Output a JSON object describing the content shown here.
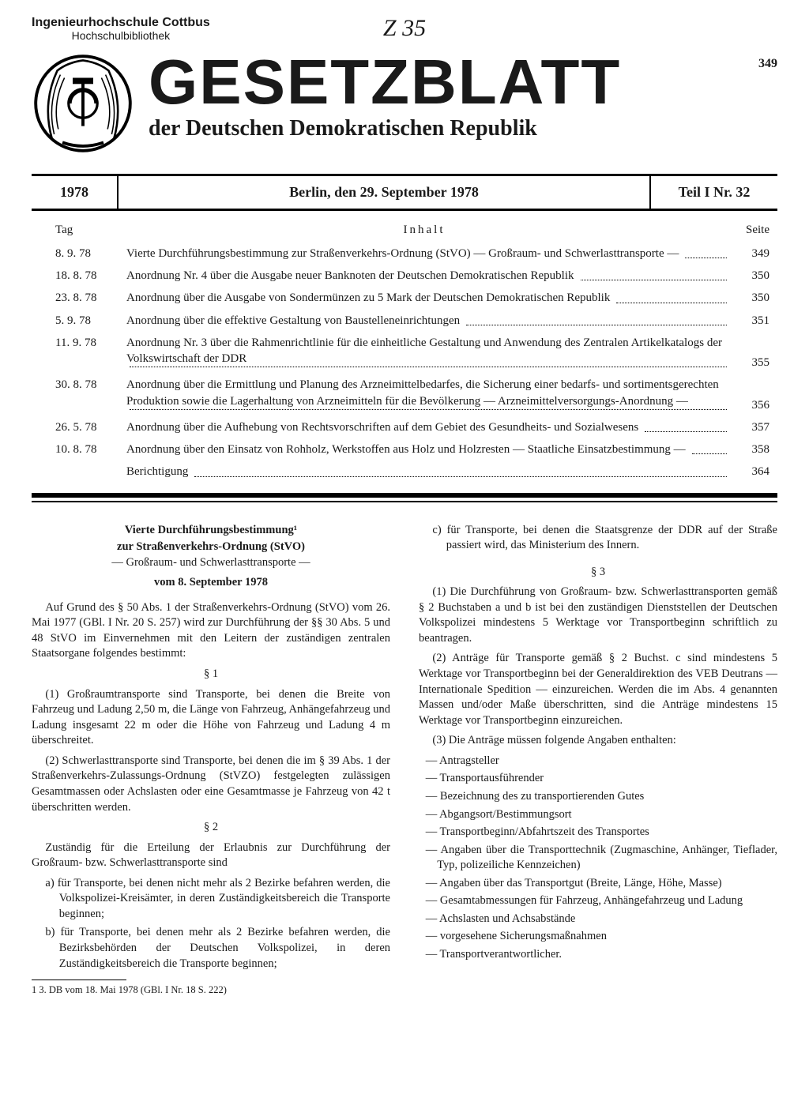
{
  "stamp": {
    "line1": "Ingenieurhochschule Cottbus",
    "line2": "Hochschulbibliothek"
  },
  "handnote": "Z 35",
  "masthead": {
    "title": "GESETZBLATT",
    "subtitle": "der Deutschen Demokratischen Republik",
    "page_number": "349"
  },
  "issue": {
    "year": "1978",
    "place_date": "Berlin, den 29. September 1978",
    "part_no": "Teil I Nr. 32"
  },
  "toc": {
    "head_day": "Tag",
    "head_content": "Inhalt",
    "head_page": "Seite",
    "rows": [
      {
        "day": "8. 9. 78",
        "title": "Vierte Durchführungsbestimmung zur Straßenverkehrs-Ordnung (StVO) — Großraum- und Schwerlasttransporte —",
        "page": "349"
      },
      {
        "day": "18. 8. 78",
        "title": "Anordnung Nr. 4 über die Ausgabe neuer Banknoten der Deutschen Demokratischen Republik",
        "page": "350"
      },
      {
        "day": "23. 8. 78",
        "title": "Anordnung über die Ausgabe von Sondermünzen zu 5 Mark der Deutschen Demokratischen Republik",
        "page": "350"
      },
      {
        "day": "5. 9. 78",
        "title": "Anordnung über die effektive Gestaltung von Baustelleneinrichtungen",
        "page": "351"
      },
      {
        "day": "11. 9. 78",
        "title": "Anordnung Nr. 3 über die Rahmenrichtlinie für die einheitliche Gestaltung und Anwendung des Zentralen Artikelkatalogs der Volkswirtschaft der DDR",
        "page": "355"
      },
      {
        "day": "30. 8. 78",
        "title": "Anordnung über die Ermittlung und Planung des Arzneimittelbedarfes, die Sicherung einer bedarfs- und sortimentsgerechten Produktion sowie die Lagerhaltung von Arzneimitteln für die Bevölkerung — Arzneimittelversorgungs-Anordnung —",
        "page": "356"
      },
      {
        "day": "26. 5. 78",
        "title": "Anordnung über die Aufhebung von Rechtsvorschriften auf dem Gebiet des Gesundheits- und Sozialwesens",
        "page": "357"
      },
      {
        "day": "10. 8. 78",
        "title": "Anordnung über den Einsatz von Rohholz, Werkstoffen aus Holz und Holzresten — Staatliche Einsatzbestimmung —",
        "page": "358"
      },
      {
        "day": "",
        "title": "Berichtigung",
        "page": "364"
      }
    ]
  },
  "article": {
    "title_line1": "Vierte Durchführungsbestimmung¹",
    "title_line2": "zur Straßenverkehrs-Ordnung (StVO)",
    "title_line3": "— Großraum- und Schwerlasttransporte —",
    "date_line": "vom 8. September 1978",
    "preamble": "Auf Grund des § 50 Abs. 1 der Straßenverkehrs-Ordnung (StVO) vom 26. Mai 1977 (GBl. I Nr. 20 S. 257) wird zur Durchführung der §§ 30 Abs. 5 und 48 StVO im Einvernehmen mit den Leitern der zuständigen zentralen Staatsorgane folgendes bestimmt:",
    "s1": "§ 1",
    "p1_1": "(1) Großraumtransporte sind Transporte, bei denen die Breite von Fahrzeug und Ladung 2,50 m, die Länge von Fahrzeug, Anhängefahrzeug und Ladung insgesamt 22 m oder die Höhe von Fahrzeug und Ladung 4 m überschreitet.",
    "p1_2": "(2) Schwerlasttransporte sind Transporte, bei denen die im § 39 Abs. 1 der Straßenverkehrs-Zulassungs-Ordnung (StVZO) festgelegten zulässigen Gesamtmassen oder Achslasten oder eine Gesamtmasse je Fahrzeug von 42 t überschritten werden.",
    "s2": "§ 2",
    "p2_intro": "Zuständig für die Erteilung der Erlaubnis zur Durchführung der Großraum- bzw. Schwerlasttransporte sind",
    "p2_a": "a) für Transporte, bei denen nicht mehr als 2 Bezirke befahren werden, die Volkspolizei-Kreisämter, in deren Zuständigkeitsbereich die Transporte beginnen;",
    "p2_b": "b) für Transporte, bei denen mehr als 2 Bezirke befahren werden, die Bezirksbehörden der Deutschen Volkspolizei, in deren Zuständigkeitsbereich die Transporte beginnen;",
    "p2_c": "c) für Transporte, bei denen die Staatsgrenze der DDR auf der Straße passiert wird, das Ministerium des Innern.",
    "s3": "§ 3",
    "p3_1": "(1) Die Durchführung von Großraum- bzw. Schwerlasttransporten gemäß § 2 Buchstaben a und b ist bei den zuständigen Dienststellen der Deutschen Volkspolizei mindestens 5 Werktage vor Transportbeginn schriftlich zu beantragen.",
    "p3_2": "(2) Anträge für Transporte gemäß § 2 Buchst. c sind mindestens 5 Werktage vor Transportbeginn bei der Generaldirektion des VEB Deutrans — Internationale Spedition — einzureichen. Werden die im Abs. 4 genannten Massen und/oder Maße überschritten, sind die Anträge mindestens 15 Werktage vor Transportbeginn einzureichen.",
    "p3_3_intro": "(3) Die Anträge müssen folgende Angaben enthalten:",
    "list": [
      "Antragsteller",
      "Transportausführender",
      "Bezeichnung des zu transportierenden Gutes",
      "Abgangsort/Bestimmungsort",
      "Transportbeginn/Abfahrtszeit des Transportes",
      "Angaben über die Transporttechnik (Zugmaschine, Anhänger, Tieflader, Typ, polizeiliche Kennzeichen)",
      "Angaben über das Transportgut (Breite, Länge, Höhe, Masse)",
      "Gesamtabmessungen für Fahrzeug, Anhängefahrzeug und Ladung",
      "Achslasten und Achsabstände",
      "vorgesehene Sicherungsmaßnahmen",
      "Transportverantwortlicher."
    ],
    "footnote": "1  3. DB vom 18. Mai 1978 (GBl. I Nr. 18 S. 222)"
  }
}
